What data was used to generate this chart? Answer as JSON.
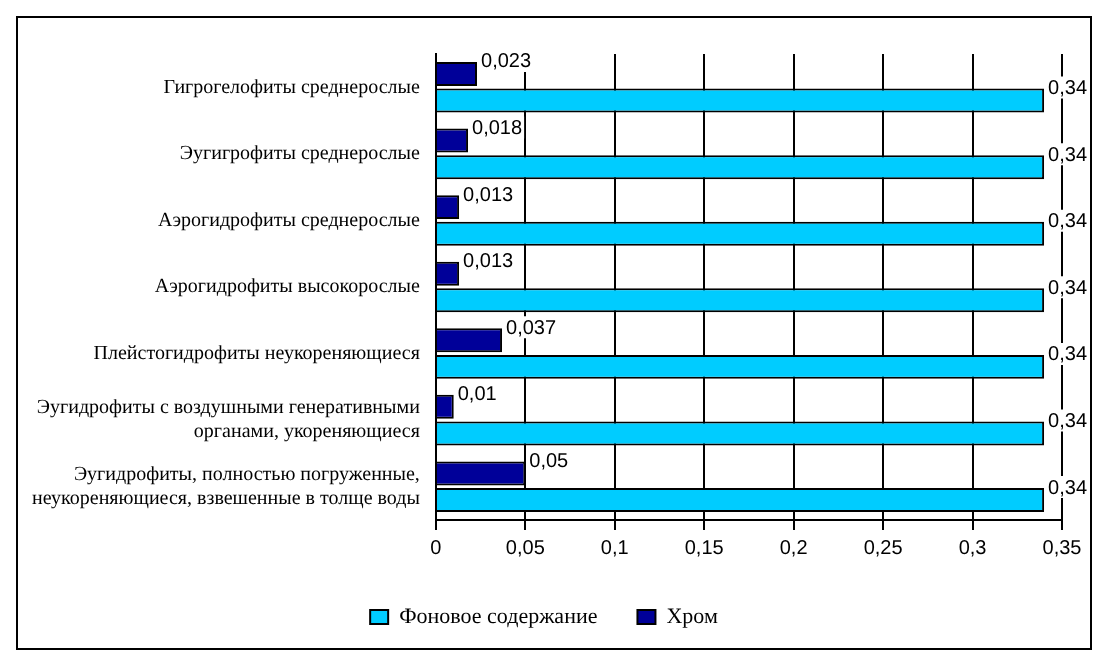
{
  "chart_data": {
    "type": "bar",
    "orientation": "horizontal",
    "categories": [
      "Гигрогелофиты среднерослые",
      "Эугигрофиты среднерослые",
      "Аэрогидрофиты среднерослые",
      "Аэрогидрофиты высокорослые",
      "Плейстогидрофиты неукореняющиеся",
      "Эугидрофиты с воздушными генеративными органами, укореняющиеся",
      "Эугидрофиты, полностью погруженные, неукореняющиеся, взвешенные в толще воды"
    ],
    "series": [
      {
        "name": "Фоновое содержание",
        "color": "#00ccff",
        "values": [
          0.34,
          0.34,
          0.34,
          0.34,
          0.34,
          0.34,
          0.34
        ],
        "value_labels": [
          "0,34",
          "0,34",
          "0,34",
          "0,34",
          "0,34",
          "0,34",
          "0,34"
        ]
      },
      {
        "name": "Хром",
        "color": "#000099",
        "values": [
          0.023,
          0.018,
          0.013,
          0.013,
          0.037,
          0.01,
          0.05
        ],
        "value_labels": [
          "0,023",
          "0,018",
          "0,013",
          "0,013",
          "0,037",
          "0,01",
          "0,05"
        ]
      }
    ],
    "xlim": [
      0,
      0.35
    ],
    "xticks": [
      0,
      {
        "value": 0.05,
        "label": "0,05"
      },
      {
        "value": 0.1,
        "label": "0,1"
      },
      {
        "value": 0.15,
        "label": "0,15"
      },
      {
        "value": 0.2,
        "label": "0,2"
      },
      {
        "value": 0.25,
        "label": "0,25"
      },
      {
        "value": 0.3,
        "label": "0,3"
      },
      {
        "value": 0.35,
        "label": "0,35"
      }
    ],
    "grid": "x",
    "legend": "bottom"
  }
}
